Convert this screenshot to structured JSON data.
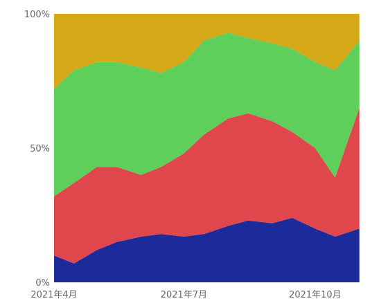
{
  "chart_data": {
    "type": "area",
    "stacking": "percent",
    "x_axis": {
      "start": "2021-04-01",
      "end": "2021-11-05",
      "ticks": [
        {
          "date": "2021-04-01",
          "label": "2021年4月"
        },
        {
          "date": "2021-07-01",
          "label": "2021年7月"
        },
        {
          "date": "2021-10-01",
          "label": "2021年10月"
        }
      ]
    },
    "y_axis": {
      "range": [
        0,
        100
      ],
      "ticks": [
        {
          "value": 0,
          "label": "0%"
        },
        {
          "value": 50,
          "label": "50%"
        },
        {
          "value": 100,
          "label": "100%"
        }
      ]
    },
    "grid": false,
    "legend": "none",
    "series": [
      {
        "color": "#1c2a9a",
        "x": [
          "2021-04-01",
          "2021-04-15",
          "2021-05-01",
          "2021-05-15",
          "2021-06-01",
          "2021-06-15",
          "2021-07-01",
          "2021-07-15",
          "2021-08-01",
          "2021-08-15",
          "2021-09-01",
          "2021-09-15",
          "2021-10-01",
          "2021-10-15",
          "2021-11-01"
        ],
        "values": [
          10,
          7,
          12,
          15,
          17,
          18,
          17,
          18,
          21,
          23,
          22,
          24,
          20,
          17,
          20
        ]
      },
      {
        "color": "#e0474c",
        "x": [
          "2021-04-01",
          "2021-04-15",
          "2021-05-01",
          "2021-05-15",
          "2021-06-01",
          "2021-06-15",
          "2021-07-01",
          "2021-07-15",
          "2021-08-01",
          "2021-08-15",
          "2021-09-01",
          "2021-09-15",
          "2021-10-01",
          "2021-10-15",
          "2021-11-01"
        ],
        "values": [
          22,
          30,
          31,
          28,
          23,
          25,
          31,
          37,
          40,
          40,
          38,
          32,
          30,
          22,
          45
        ]
      },
      {
        "color": "#5ecf5a",
        "x": [
          "2021-04-01",
          "2021-04-15",
          "2021-05-01",
          "2021-05-15",
          "2021-06-01",
          "2021-06-15",
          "2021-07-01",
          "2021-07-15",
          "2021-08-01",
          "2021-08-15",
          "2021-09-01",
          "2021-09-15",
          "2021-10-01",
          "2021-10-15",
          "2021-11-01"
        ],
        "values": [
          40,
          42,
          39,
          39,
          40,
          35,
          34,
          35,
          32,
          28,
          29,
          31,
          32,
          40,
          25
        ]
      },
      {
        "color": "#d4a817",
        "x": [
          "2021-04-01",
          "2021-04-15",
          "2021-05-01",
          "2021-05-15",
          "2021-06-01",
          "2021-06-15",
          "2021-07-01",
          "2021-07-15",
          "2021-08-01",
          "2021-08-15",
          "2021-09-01",
          "2021-09-15",
          "2021-10-01",
          "2021-10-15",
          "2021-11-01"
        ],
        "values": [
          28,
          21,
          18,
          18,
          20,
          22,
          18,
          10,
          7,
          9,
          11,
          13,
          18,
          21,
          10
        ]
      }
    ]
  }
}
